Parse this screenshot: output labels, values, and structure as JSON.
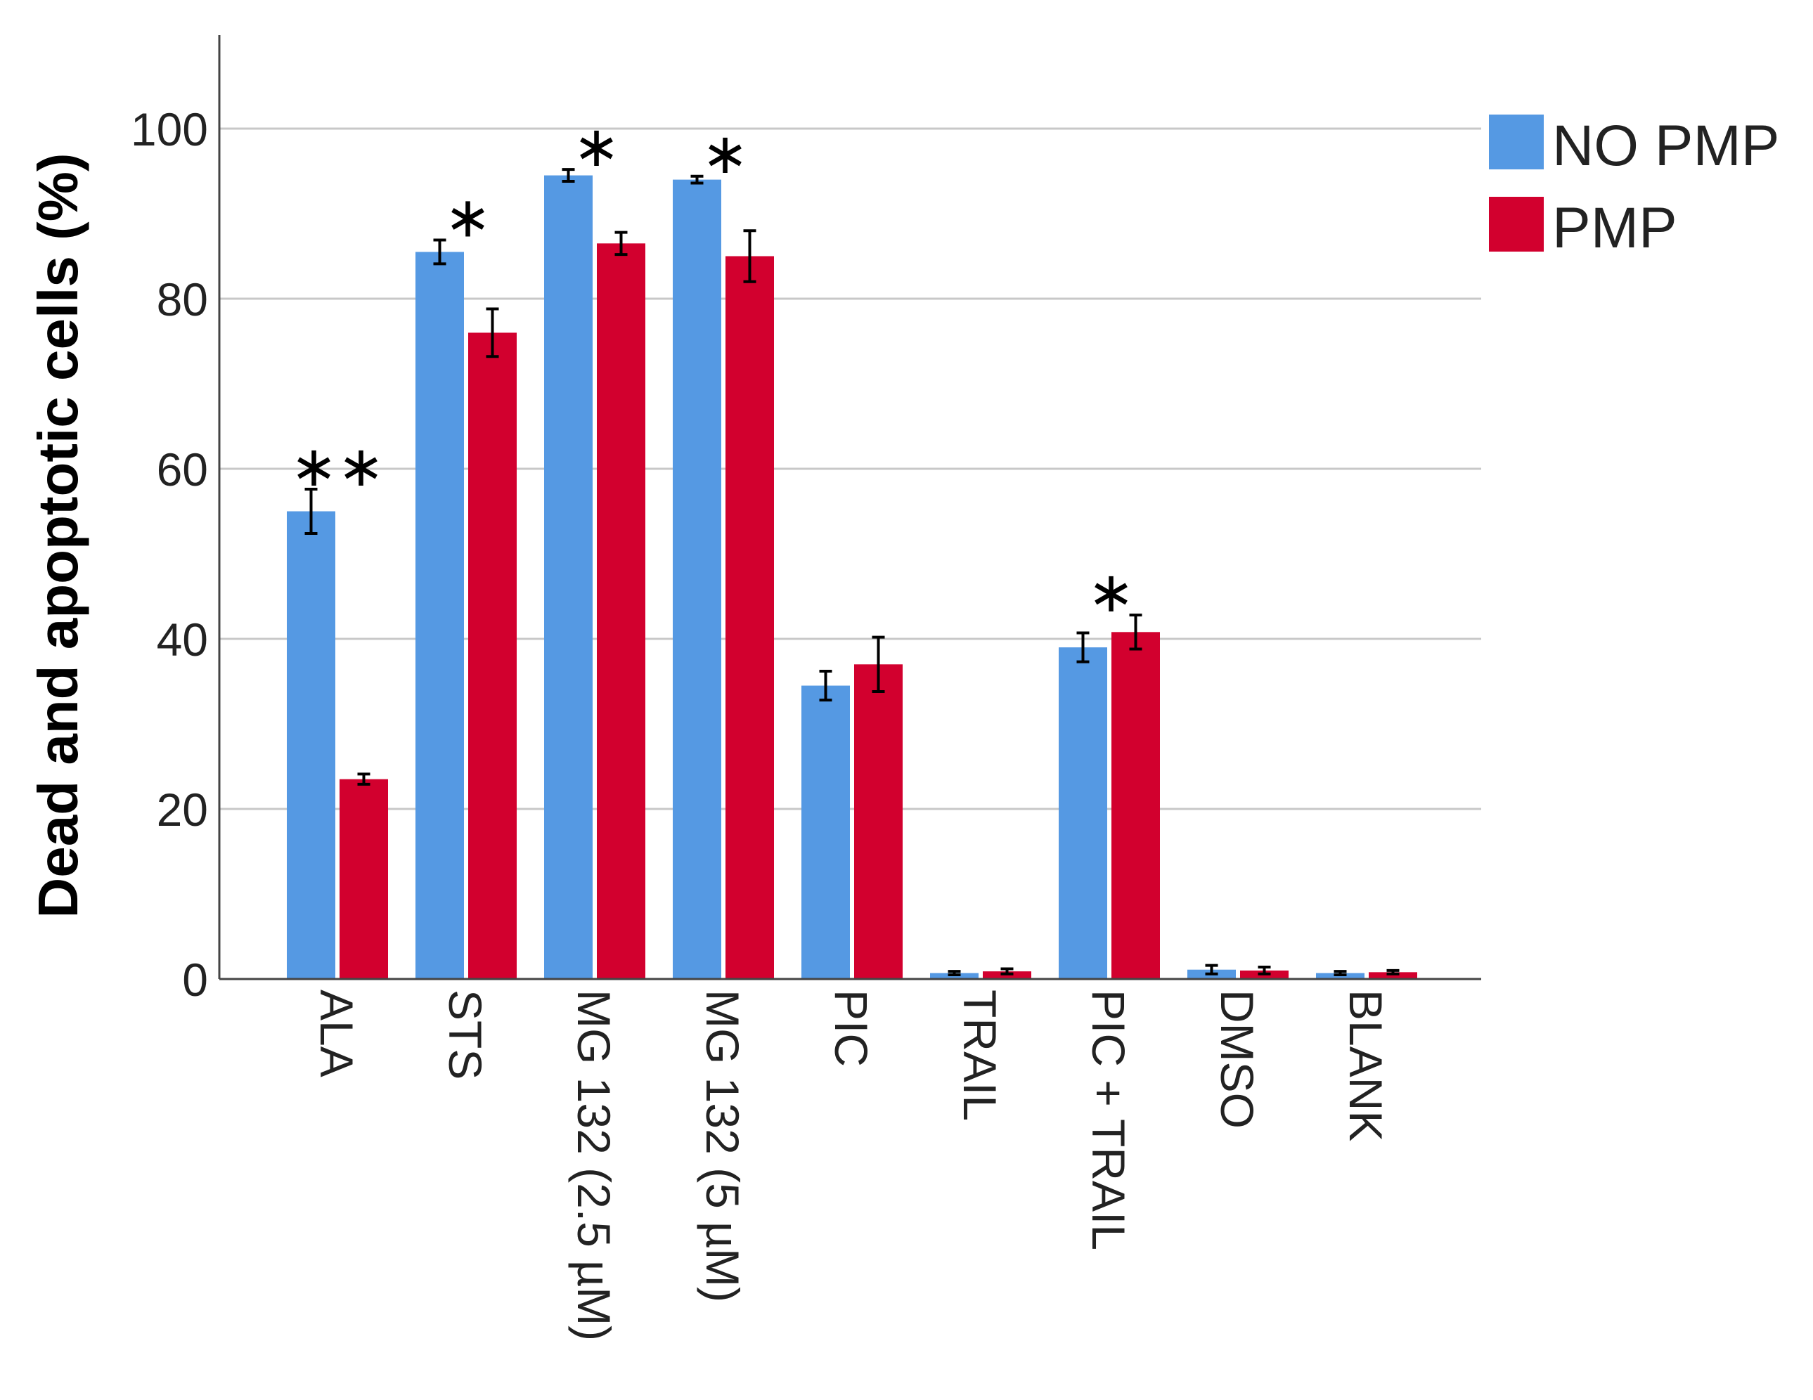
{
  "chart_data": {
    "type": "bar",
    "title": "",
    "xlabel": "",
    "ylabel": "Dead and apoptotic cells (%)",
    "ylim": [
      0,
      110
    ],
    "yticks": [
      0,
      20,
      40,
      60,
      80,
      100
    ],
    "grid": true,
    "legend_position": "top-right",
    "categories": [
      "ALA",
      "STS",
      "MG 132 (2.5 µM)",
      "MG 132 (5 µM)",
      "PIC",
      "TRAIL",
      "PIC + TRAIL",
      "DMSO",
      "BLANK"
    ],
    "series": [
      {
        "name": "NO PMP",
        "color": "#5599e3",
        "values": [
          55,
          85.5,
          94.5,
          94,
          34.5,
          0.7,
          39,
          1.1,
          0.7
        ],
        "errors": [
          2.6,
          1.4,
          0.7,
          0.4,
          1.7,
          0.2,
          1.7,
          0.5,
          0.2
        ]
      },
      {
        "name": "PMP",
        "color": "#d2002e",
        "values": [
          23.5,
          76,
          86.5,
          85,
          37,
          0.9,
          40.8,
          1.0,
          0.8
        ],
        "errors": [
          0.6,
          2.8,
          1.3,
          3.0,
          3.2,
          0.3,
          2.0,
          0.4,
          0.2
        ]
      }
    ],
    "annotations": [
      {
        "category": "ALA",
        "text": "∗∗"
      },
      {
        "category": "STS",
        "text": "∗"
      },
      {
        "category": "MG 132 (2.5 µM)",
        "text": "∗"
      },
      {
        "category": "MG 132 (5 µM)",
        "text": "∗"
      },
      {
        "category": "PIC + TRAIL",
        "text": "∗"
      }
    ]
  }
}
